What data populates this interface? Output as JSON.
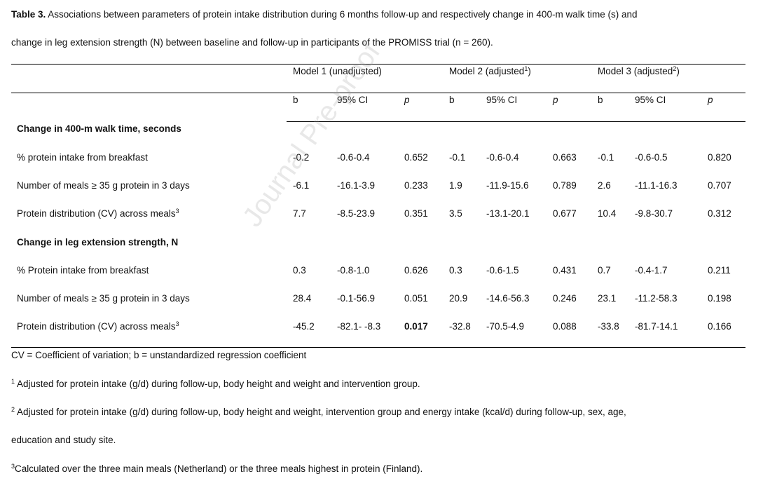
{
  "caption": {
    "label": "Table 3.",
    "line1": " Associations between parameters of protein intake distribution during 6 months follow-up and respectively change in 400-m walk time (s) and",
    "line2": "change in leg extension strength (N) between baseline and follow-up in participants of the PROMISS trial (n = 260)."
  },
  "models": [
    {
      "label": "Model 1 (unadjusted)",
      "sup": ""
    },
    {
      "label": "Model 2 (adjusted",
      "sup": "1",
      "close": ")"
    },
    {
      "label": "Model 3 (adjusted",
      "sup": "2",
      "close": ")"
    }
  ],
  "subheaders": {
    "b": "b",
    "ci": "95% CI",
    "p": "p"
  },
  "sections": [
    {
      "title": "Change in 400-m walk time, seconds",
      "rows": [
        {
          "label": "% protein intake from breakfast",
          "sup": "",
          "values": [
            "-0.2",
            "-0.6-0.4",
            "0.652",
            "-0.1",
            "-0.6-0.4",
            "0.663",
            "-0.1",
            "-0.6-0.5",
            "0.820"
          ]
        },
        {
          "label": "Number of meals ≥ 35 g protein in 3 days",
          "sup": "",
          "values": [
            "-6.1",
            "-16.1-3.9",
            "0.233",
            "1.9",
            "-11.9-15.6",
            "0.789",
            "2.6",
            "-11.1-16.3",
            "0.707"
          ]
        },
        {
          "label": "Protein distribution (CV) across meals",
          "sup": "3",
          "values": [
            "7.7",
            "-8.5-23.9",
            "0.351",
            "3.5",
            "-13.1-20.1",
            "0.677",
            "10.4",
            "-9.8-30.7",
            "0.312"
          ]
        }
      ]
    },
    {
      "title": "Change in leg extension strength, N",
      "rows": [
        {
          "label": "% Protein intake from breakfast",
          "sup": "",
          "values": [
            "0.3",
            "-0.8-1.0",
            "0.626",
            "0.3",
            "-0.6-1.5",
            "0.431",
            "0.7",
            "-0.4-1.7",
            "0.211"
          ]
        },
        {
          "label": "Number of meals ≥ 35 g protein in 3 days",
          "sup": "",
          "values": [
            "28.4",
            "-0.1-56.9",
            "0.051",
            "20.9",
            "-14.6-56.3",
            "0.246",
            "23.1",
            "-11.2-58.3",
            "0.198"
          ]
        },
        {
          "label": "Protein distribution (CV) across meals",
          "sup": "3",
          "values": [
            "-45.2",
            "-82.1- -8.3",
            "0.017",
            "-32.8",
            "-70.5-4.9",
            "0.088",
            "-33.8",
            "-81.7-14.1",
            "0.166"
          ],
          "bold_index": 2
        }
      ]
    }
  ],
  "footnotes": {
    "abbrev": "CV = Coefficient of variation; b = unstandardized regression coefficient",
    "fn1_mark": "1",
    "fn1": " Adjusted for protein intake (g/d) during follow-up, body height and weight and intervention group.",
    "fn2_mark": "2",
    "fn2_line1": " Adjusted for protein intake (g/d) during follow-up, body height and weight, intervention group and energy intake (kcal/d) during follow-up,  sex, age,",
    "fn2_line2": "education and study site.",
    "fn3_mark": "3",
    "fn3": "Calculated over the three main meals (Netherland) or the three meals highest in protein (Finland)."
  },
  "watermark": "Journal Pre-proof"
}
